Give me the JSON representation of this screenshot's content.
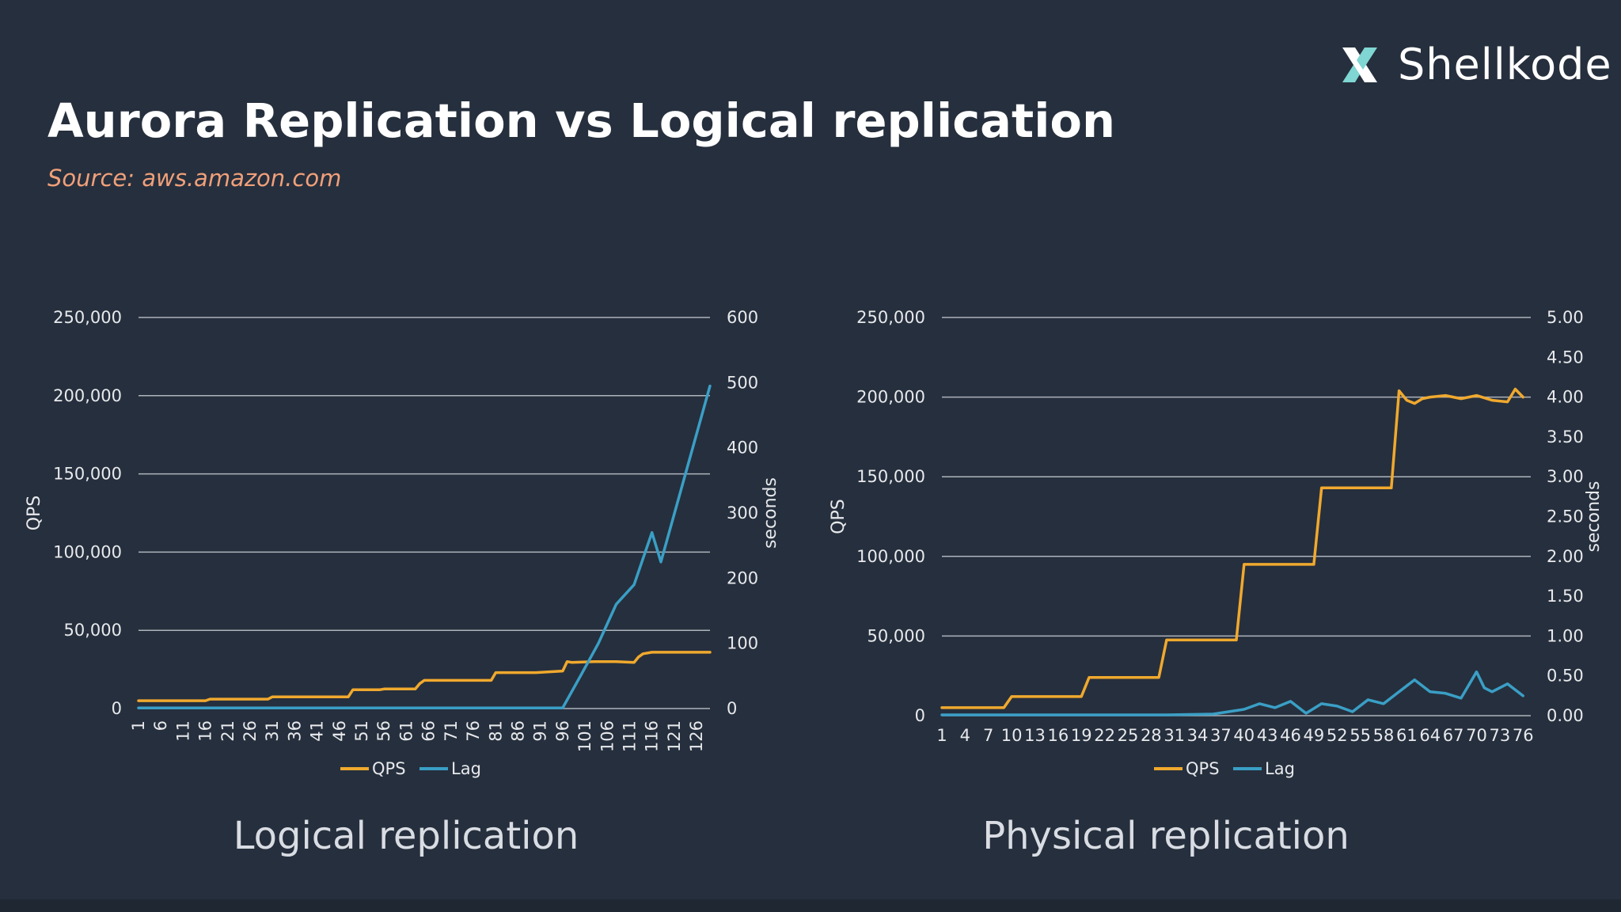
{
  "title": "Aurora Replication vs Logical replication",
  "source": "Source: aws.amazon.com",
  "brand": {
    "name": "Shellkode",
    "icon": "x-logo-icon",
    "accent": "#7fd6d2"
  },
  "colors": {
    "qps": "#f0a92e",
    "lag": "#3a9fc6",
    "grid": "#aeb4bc",
    "text": "#e7e9ec"
  },
  "chart_data": [
    {
      "type": "line",
      "caption": "Logical replication",
      "ylabel": "QPS",
      "y2label": "seconds",
      "ylim": [
        0,
        250000
      ],
      "y2lim": [
        0,
        600
      ],
      "yticks": [
        0,
        50000,
        100000,
        150000,
        200000,
        250000
      ],
      "ytick_labels": [
        "0",
        "50,000",
        "100,000",
        "150,000",
        "200,000",
        "250,000"
      ],
      "y2ticks": [
        0,
        100,
        200,
        300,
        400,
        500,
        600
      ],
      "y2tick_labels": [
        "0",
        "100",
        "200",
        "300",
        "400",
        "500",
        "600"
      ],
      "xlim": [
        1,
        129
      ],
      "xticks": [
        1,
        6,
        11,
        16,
        21,
        26,
        31,
        36,
        41,
        46,
        51,
        56,
        61,
        66,
        71,
        76,
        81,
        86,
        91,
        96,
        101,
        106,
        111,
        116,
        121,
        126
      ],
      "xtick_rotate": true,
      "legend": [
        "QPS",
        "Lag"
      ],
      "legend_position": "bottom",
      "series": [
        {
          "name": "QPS",
          "axis": "left",
          "x": [
            1,
            6,
            11,
            16,
            17,
            30,
            31,
            48,
            49,
            55,
            56,
            63,
            64,
            65,
            66,
            80,
            81,
            82,
            84,
            90,
            96,
            97,
            98,
            103,
            108,
            112,
            113,
            114,
            116,
            129
          ],
          "y": [
            5000,
            5000,
            5000,
            5000,
            6000,
            6000,
            7500,
            7500,
            12000,
            12000,
            12500,
            12500,
            16000,
            18000,
            18000,
            18000,
            23000,
            23000,
            23000,
            23000,
            24000,
            30000,
            29500,
            30000,
            30000,
            29500,
            33000,
            35000,
            36000,
            36000
          ]
        },
        {
          "name": "Lag",
          "axis": "right",
          "x": [
            1,
            20,
            40,
            60,
            80,
            95,
            96,
            100,
            104,
            108,
            112,
            114,
            116,
            118,
            129
          ],
          "y": [
            1,
            1,
            1,
            1,
            1,
            1,
            1,
            50,
            100,
            160,
            190,
            230,
            270,
            225,
            495
          ]
        }
      ]
    },
    {
      "type": "line",
      "caption": "Physical replication",
      "ylabel": "QPS",
      "y2label": "seconds",
      "ylim": [
        0,
        250000
      ],
      "y2lim": [
        0,
        5
      ],
      "yticks": [
        0,
        50000,
        100000,
        150000,
        200000,
        250000
      ],
      "ytick_labels": [
        "0",
        "50,000",
        "100,000",
        "150,000",
        "200,000",
        "250,000"
      ],
      "y2ticks": [
        0,
        0.5,
        1,
        1.5,
        2,
        2.5,
        3,
        3.5,
        4,
        4.5,
        5
      ],
      "y2tick_labels": [
        "0.00",
        "0.50",
        "1.00",
        "1.50",
        "2.00",
        "2.50",
        "3.00",
        "3.50",
        "4.00",
        "4.50",
        "5.00"
      ],
      "xlim": [
        1,
        77
      ],
      "xticks": [
        1,
        4,
        7,
        10,
        13,
        16,
        19,
        22,
        25,
        28,
        31,
        34,
        37,
        40,
        43,
        46,
        49,
        52,
        55,
        58,
        61,
        64,
        67,
        70,
        73,
        76
      ],
      "xtick_rotate": false,
      "legend": [
        "QPS",
        "Lag"
      ],
      "legend_position": "bottom",
      "series": [
        {
          "name": "QPS",
          "axis": "left",
          "x": [
            1,
            9,
            10,
            19,
            20,
            29,
            30,
            39,
            40,
            49,
            50,
            59,
            60,
            61,
            62,
            63,
            64,
            66,
            68,
            70,
            72,
            74,
            75,
            76
          ],
          "y": [
            5000,
            5000,
            12000,
            12000,
            24000,
            24000,
            47500,
            47500,
            95000,
            95000,
            143000,
            143000,
            204000,
            198000,
            196000,
            199000,
            200000,
            201000,
            199000,
            201000,
            198000,
            197000,
            205000,
            200000
          ]
        },
        {
          "name": "Lag",
          "axis": "right",
          "x": [
            1,
            10,
            20,
            30,
            36,
            38,
            40,
            42,
            44,
            46,
            48,
            50,
            52,
            54,
            56,
            58,
            60,
            62,
            64,
            66,
            68,
            70,
            71,
            72,
            74,
            76
          ],
          "y": [
            0.01,
            0.01,
            0.01,
            0.01,
            0.02,
            0.05,
            0.08,
            0.15,
            0.1,
            0.18,
            0.03,
            0.15,
            0.12,
            0.05,
            0.2,
            0.15,
            0.3,
            0.45,
            0.3,
            0.28,
            0.22,
            0.55,
            0.35,
            0.3,
            0.4,
            0.25
          ]
        }
      ]
    }
  ]
}
